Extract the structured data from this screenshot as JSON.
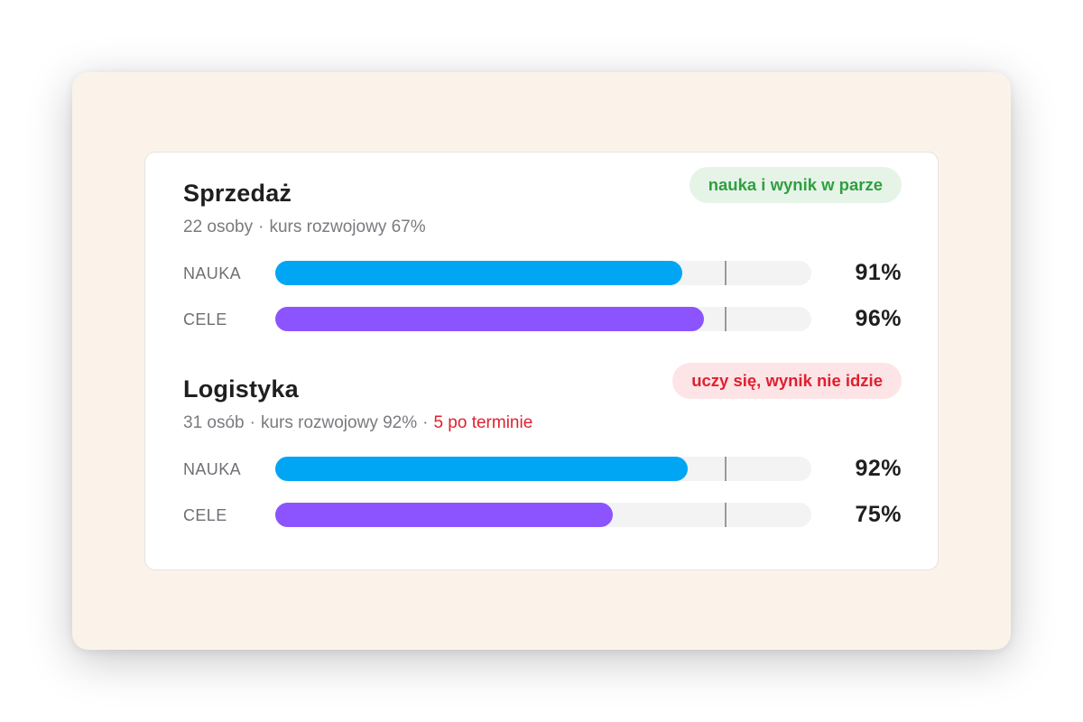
{
  "colors": {
    "nauka": "#00a6f4",
    "cele": "#8c54ff",
    "badge_ok": "#2fa03f",
    "badge_bad": "#e0202f"
  },
  "target_fraction": 0.84,
  "groups": [
    {
      "title": "Sprzedaż",
      "meta": "22 osoby",
      "course": "kurs rozwojowy 67%",
      "overdue": "",
      "badge": "nauka i wynik w parze",
      "status": "ok",
      "metrics": [
        {
          "label": "NAUKA",
          "value": 91,
          "value_text": "91%",
          "bar_fraction": 0.76,
          "kind": "nauka"
        },
        {
          "label": "CELE",
          "value": 96,
          "value_text": "96%",
          "bar_fraction": 0.8,
          "kind": "cele"
        }
      ]
    },
    {
      "title": "Logistyka",
      "meta": "31 osób",
      "course": "kurs rozwojowy 92%",
      "overdue": "5 po terminie",
      "badge": "uczy się, wynik nie idzie",
      "status": "bad",
      "metrics": [
        {
          "label": "NAUKA",
          "value": 92,
          "value_text": "92%",
          "bar_fraction": 0.77,
          "kind": "nauka"
        },
        {
          "label": "CELE",
          "value": 75,
          "value_text": "75%",
          "bar_fraction": 0.63,
          "kind": "cele"
        }
      ]
    }
  ]
}
